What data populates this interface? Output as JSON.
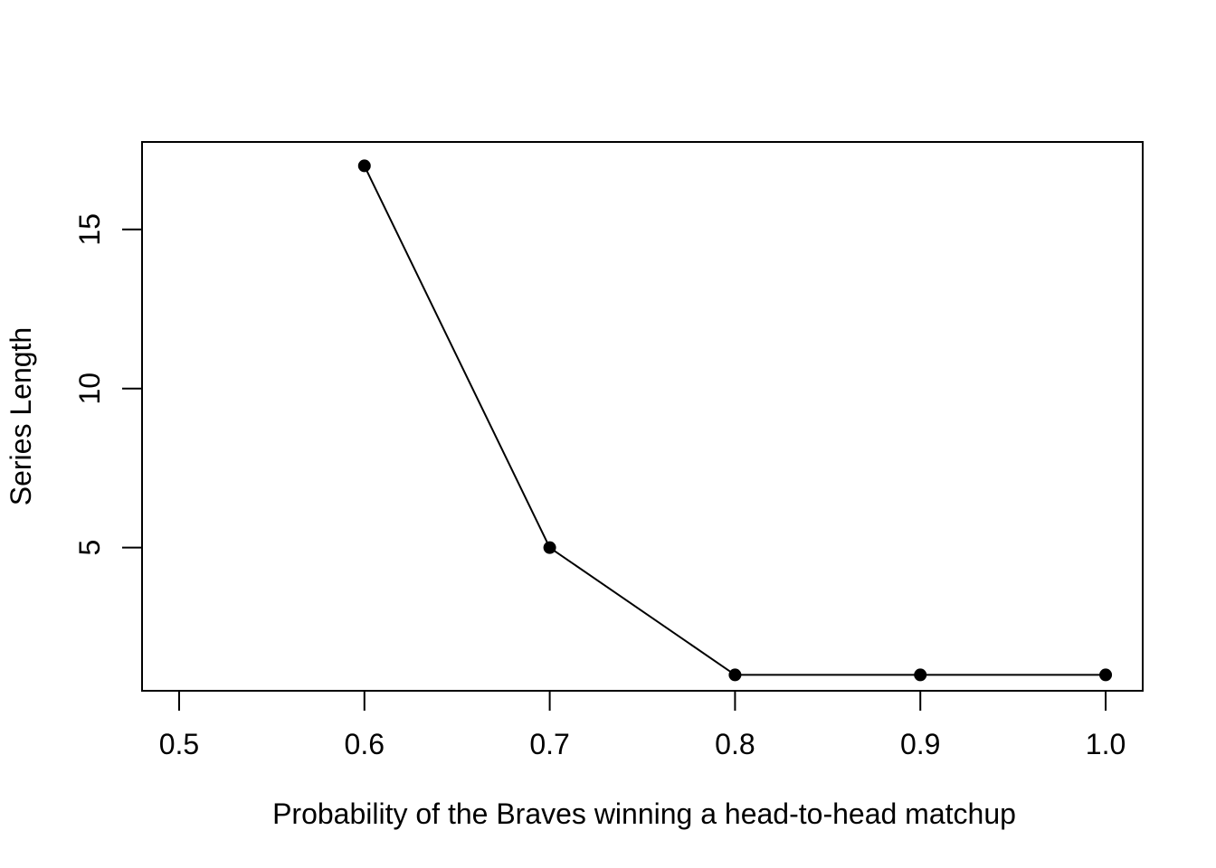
{
  "chart_data": {
    "type": "line",
    "title": "",
    "xlabel": "Probability of the Braves winning a head-to-head matchup",
    "ylabel": "Series Length",
    "x": [
      0.6,
      0.7,
      0.8,
      0.9,
      1.0
    ],
    "y": [
      17,
      5,
      1,
      1,
      1
    ],
    "xlim": [
      0.48,
      1.02
    ],
    "ylim": [
      0.5,
      17.75
    ],
    "xticks": [
      0.5,
      0.6,
      0.7,
      0.8,
      0.9,
      1.0
    ],
    "xtick_labels": [
      "0.5",
      "0.6",
      "0.7",
      "0.8",
      "0.9",
      "1.0"
    ],
    "yticks": [
      5,
      10,
      15
    ],
    "ytick_labels": [
      "5",
      "10",
      "15"
    ],
    "grid": false,
    "legend": "none",
    "line_color": "#000000",
    "marker": "filled-circle"
  }
}
